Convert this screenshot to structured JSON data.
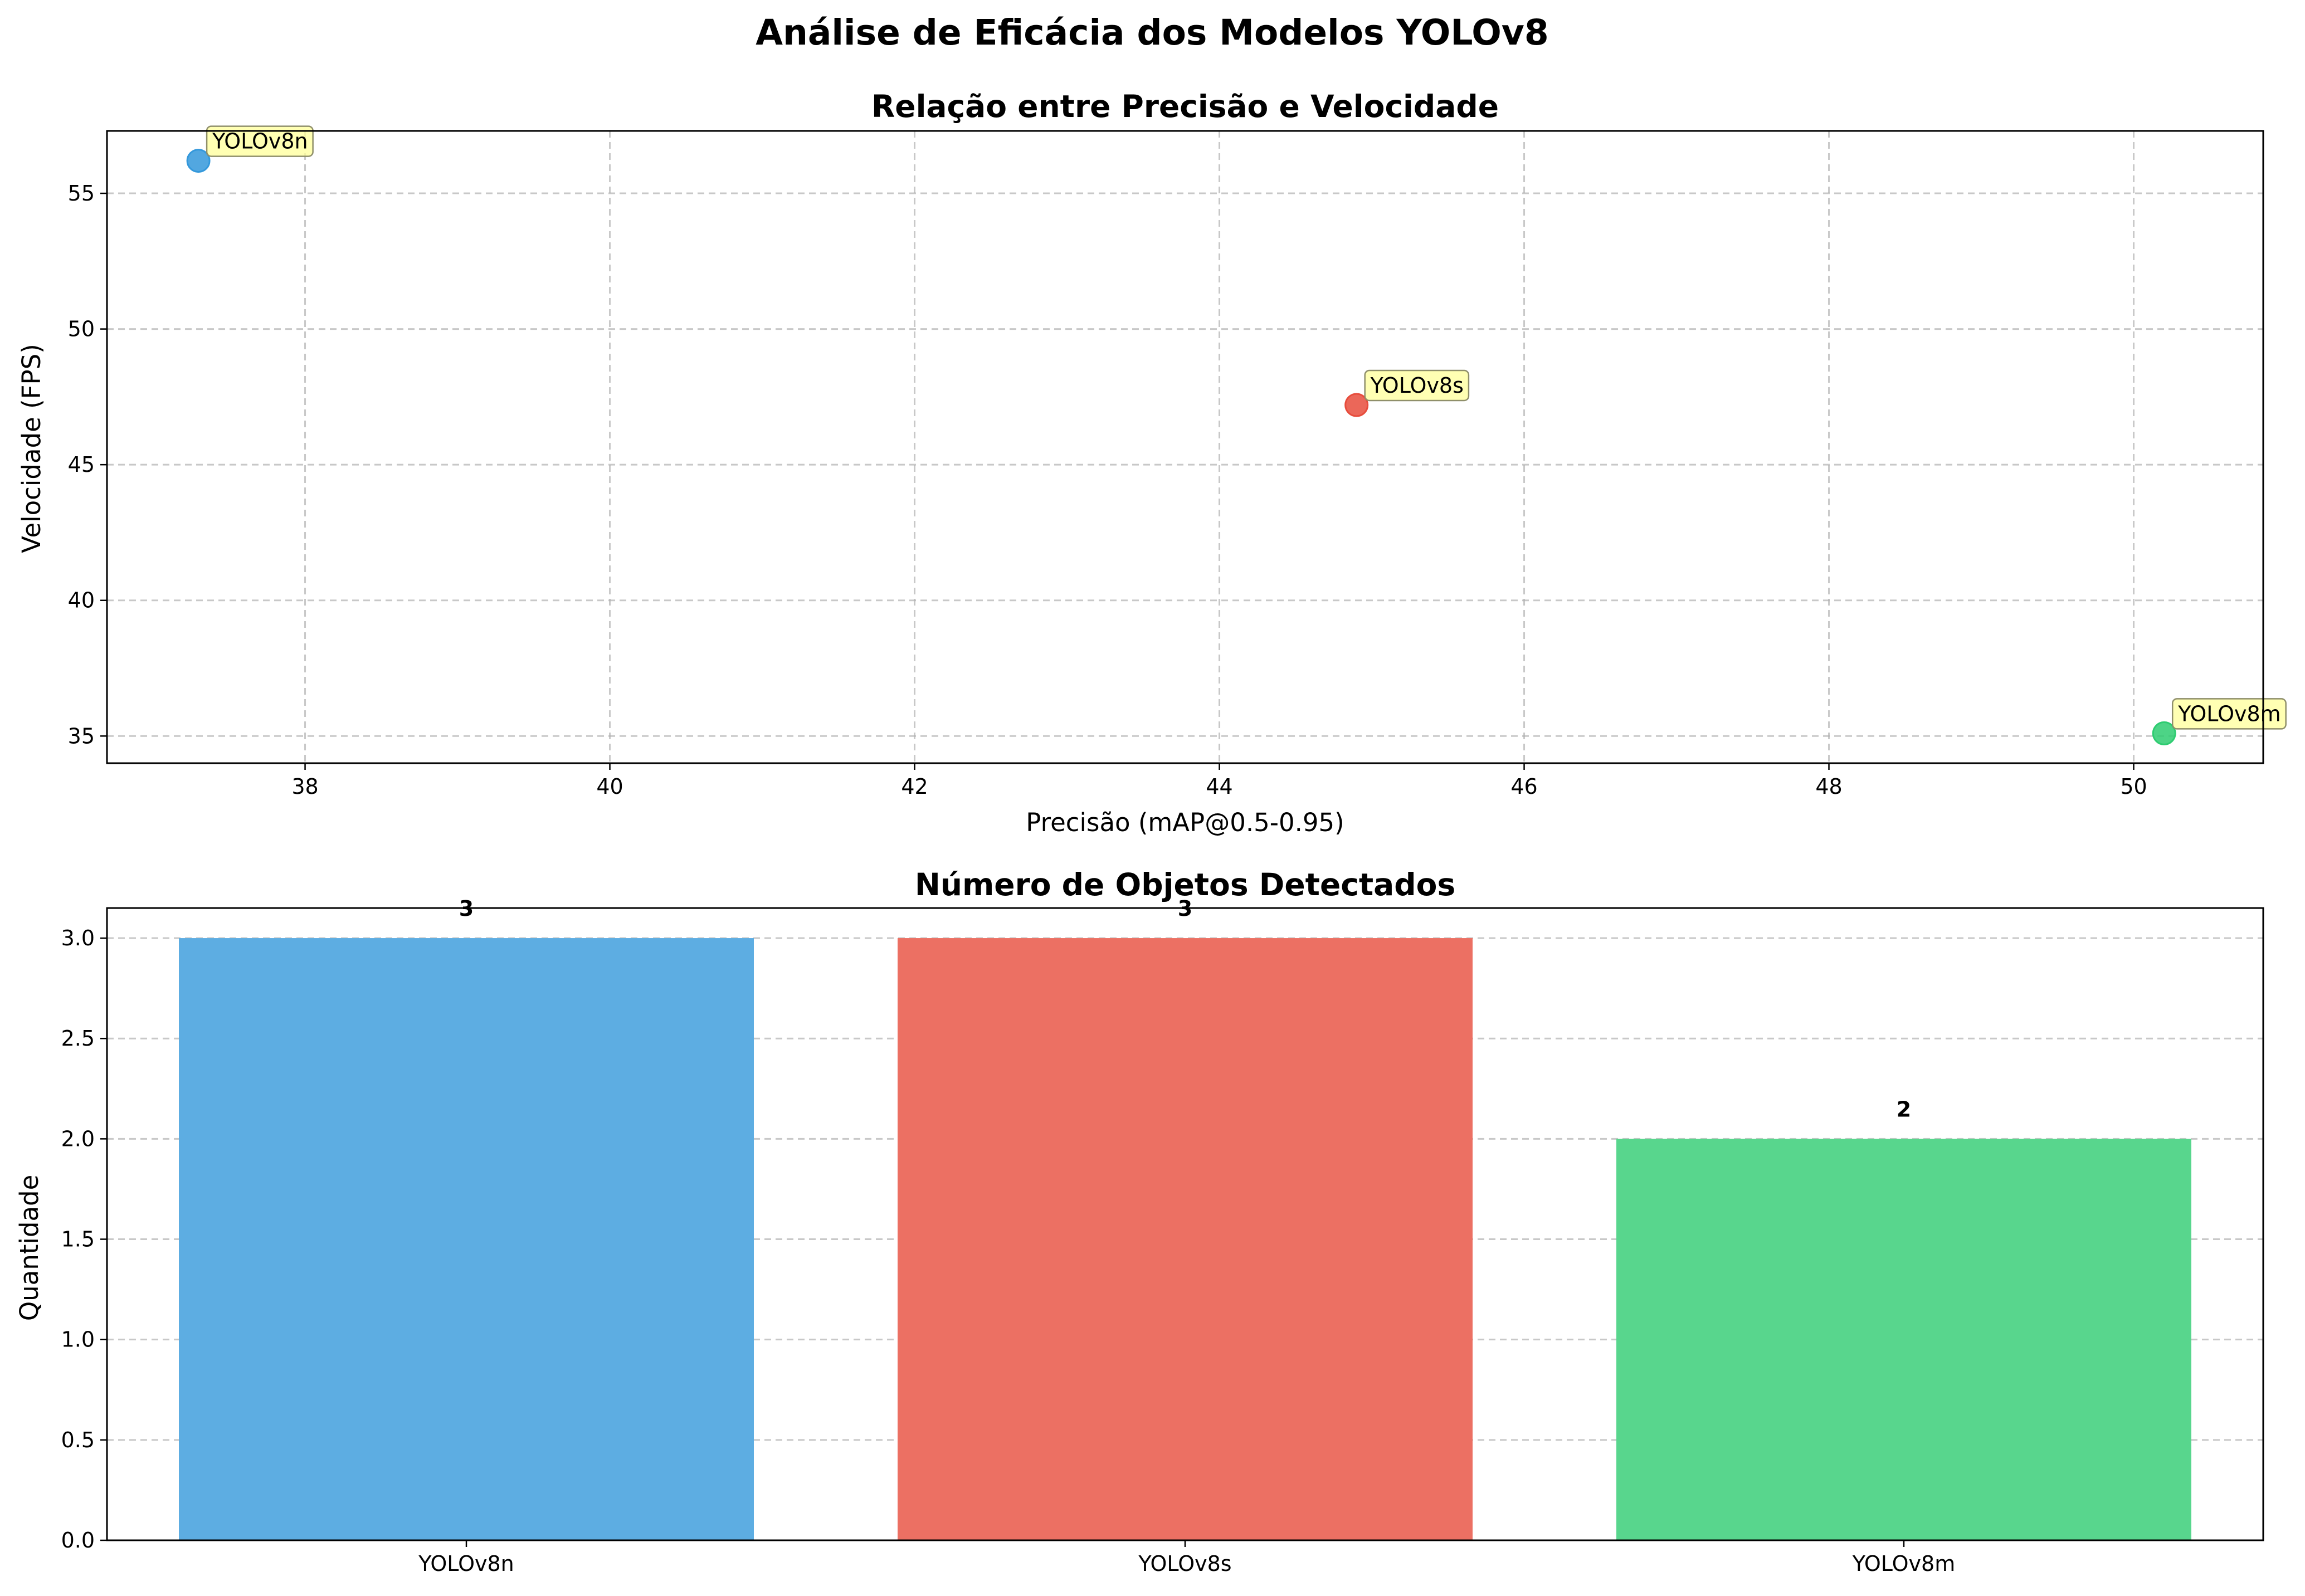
{
  "figure_title": "Análise de Eficácia dos Modelos YOLOv8",
  "chart_data": [
    {
      "type": "scatter",
      "title": "Relação entre Precisão e Velocidade",
      "xlabel": "Precisão (mAP@0.5-0.95)",
      "ylabel": "Velocidade (FPS)",
      "xlim": [
        36.7,
        50.85
      ],
      "ylim": [
        34.0,
        57.3
      ],
      "xticks": [
        38,
        40,
        42,
        44,
        46,
        48,
        50
      ],
      "yticks": [
        35,
        40,
        45,
        50,
        55
      ],
      "grid": true,
      "points": [
        {
          "label": "YOLOv8n",
          "x": 37.3,
          "y": 56.2,
          "color": "#3498db"
        },
        {
          "label": "YOLOv8s",
          "x": 44.9,
          "y": 47.2,
          "color": "#e74c3c"
        },
        {
          "label": "YOLOv8m",
          "x": 50.2,
          "y": 35.1,
          "color": "#2ecc71"
        }
      ],
      "annotation_box_color": "#ffff99"
    },
    {
      "type": "bar",
      "title": "Número de Objetos Detectados",
      "xlabel": "",
      "ylabel": "Quantidade",
      "categories": [
        "YOLOv8n",
        "YOLOv8s",
        "YOLOv8m"
      ],
      "values": [
        3,
        3,
        2
      ],
      "value_labels": [
        "3",
        "3",
        "2"
      ],
      "colors": [
        "#5dade2",
        "#ec7063",
        "#58d68d"
      ],
      "ylim": [
        0,
        3.15
      ],
      "yticks": [
        "0.0",
        "0.5",
        "1.0",
        "1.5",
        "2.0",
        "2.5",
        "3.0"
      ],
      "grid": true
    }
  ]
}
